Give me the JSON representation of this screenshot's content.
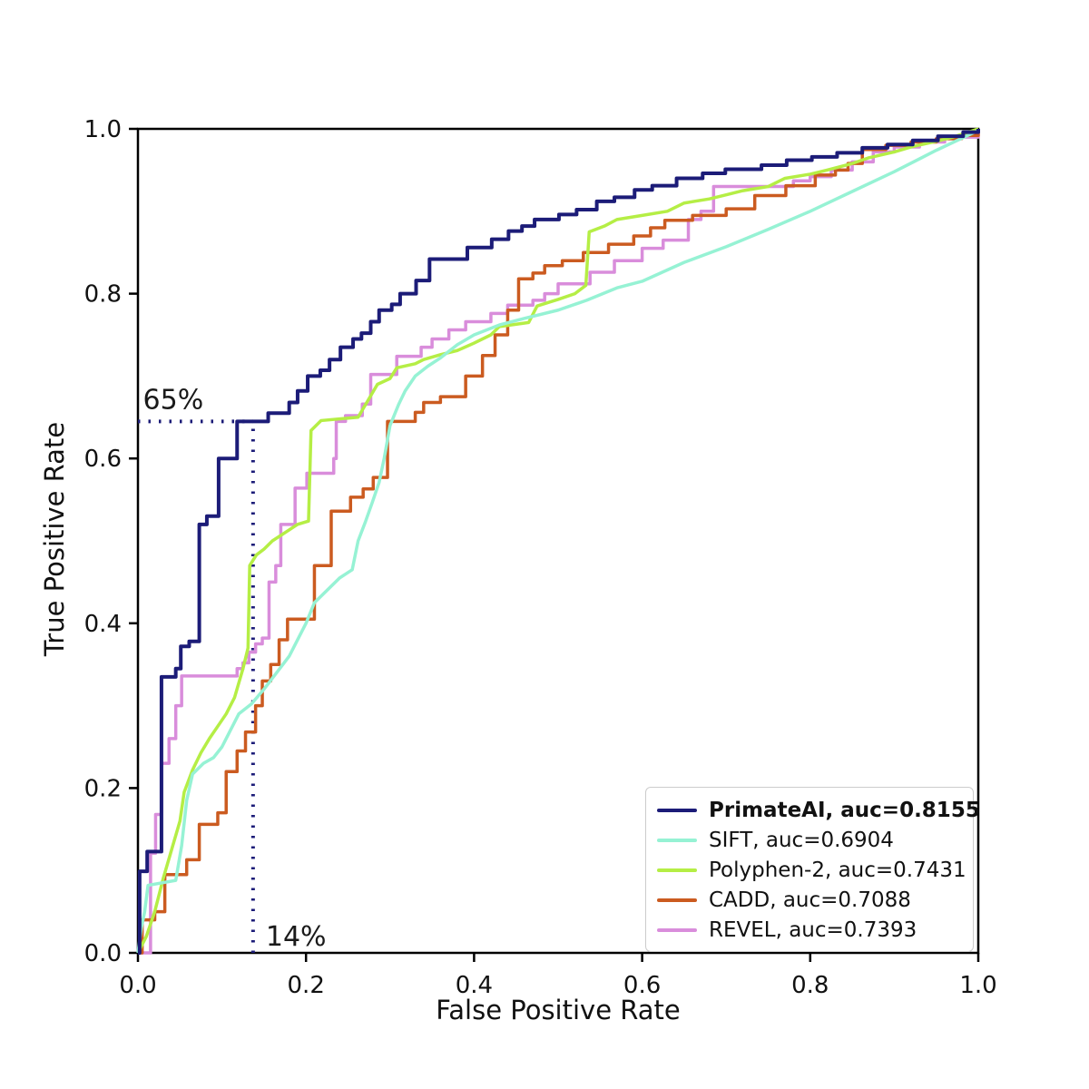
{
  "figure": {
    "background": "#ffffff",
    "axis_color": "#000000",
    "tick_label_color": "#111111"
  },
  "chart_data": {
    "type": "line",
    "subtype": "roc-curves",
    "title": "",
    "xlabel": "False Positive Rate",
    "ylabel": "True Positive Rate",
    "xlim": [
      0,
      1
    ],
    "ylim": [
      0,
      1
    ],
    "xticks": [
      0.0,
      0.2,
      0.4,
      0.6,
      0.8,
      1.0
    ],
    "yticks": [
      0.0,
      0.2,
      0.4,
      0.6,
      0.8,
      1.0
    ],
    "grid": false,
    "legend_position": "lower right",
    "annotations": {
      "tpr_label": "65%",
      "tpr_value": 0.645,
      "fpr_label": "14%",
      "fpr_value": 0.137,
      "line_color": "#1c1c78",
      "line_style": "dotted"
    },
    "series": [
      {
        "name": "PrimateAI",
        "legend_label": "PrimateAI, auc=0.8155",
        "auc": 0.8155,
        "color": "#1c1c78",
        "bold": true,
        "style": "step",
        "width": 4,
        "points": [
          [
            0,
            0
          ],
          [
            0.002,
            0.099
          ],
          [
            0.011,
            0.123
          ],
          [
            0.028,
            0.335
          ],
          [
            0.045,
            0.345
          ],
          [
            0.051,
            0.372
          ],
          [
            0.061,
            0.378
          ],
          [
            0.073,
            0.52
          ],
          [
            0.082,
            0.53
          ],
          [
            0.096,
            0.6
          ],
          [
            0.118,
            0.645
          ],
          [
            0.155,
            0.655
          ],
          [
            0.18,
            0.668
          ],
          [
            0.19,
            0.682
          ],
          [
            0.202,
            0.7
          ],
          [
            0.217,
            0.707
          ],
          [
            0.228,
            0.72
          ],
          [
            0.241,
            0.735
          ],
          [
            0.256,
            0.745
          ],
          [
            0.266,
            0.752
          ],
          [
            0.277,
            0.766
          ],
          [
            0.287,
            0.78
          ],
          [
            0.302,
            0.787
          ],
          [
            0.312,
            0.8
          ],
          [
            0.331,
            0.816
          ],
          [
            0.347,
            0.842
          ],
          [
            0.392,
            0.856
          ],
          [
            0.421,
            0.866
          ],
          [
            0.441,
            0.876
          ],
          [
            0.457,
            0.882
          ],
          [
            0.472,
            0.89
          ],
          [
            0.501,
            0.896
          ],
          [
            0.522,
            0.902
          ],
          [
            0.546,
            0.912
          ],
          [
            0.567,
            0.917
          ],
          [
            0.591,
            0.926
          ],
          [
            0.612,
            0.931
          ],
          [
            0.641,
            0.94
          ],
          [
            0.672,
            0.946
          ],
          [
            0.699,
            0.951
          ],
          [
            0.742,
            0.956
          ],
          [
            0.772,
            0.962
          ],
          [
            0.802,
            0.966
          ],
          [
            0.832,
            0.971
          ],
          [
            0.862,
            0.977
          ],
          [
            0.892,
            0.981
          ],
          [
            0.922,
            0.986
          ],
          [
            0.952,
            0.991
          ],
          [
            0.982,
            0.996
          ],
          [
            1,
            1
          ]
        ]
      },
      {
        "name": "SIFT",
        "legend_label": "SIFT, auc=0.6904",
        "auc": 0.6904,
        "color": "#96f2d4",
        "bold": false,
        "style": "line",
        "width": 3.5,
        "points": [
          [
            0,
            0
          ],
          [
            0.004,
            0.03
          ],
          [
            0.008,
            0.05
          ],
          [
            0.012,
            0.082
          ],
          [
            0.045,
            0.088
          ],
          [
            0.052,
            0.13
          ],
          [
            0.058,
            0.185
          ],
          [
            0.065,
            0.217
          ],
          [
            0.078,
            0.23
          ],
          [
            0.09,
            0.237
          ],
          [
            0.1,
            0.25
          ],
          [
            0.11,
            0.27
          ],
          [
            0.12,
            0.29
          ],
          [
            0.135,
            0.302
          ],
          [
            0.15,
            0.32
          ],
          [
            0.165,
            0.34
          ],
          [
            0.18,
            0.36
          ],
          [
            0.19,
            0.38
          ],
          [
            0.2,
            0.4
          ],
          [
            0.21,
            0.425
          ],
          [
            0.225,
            0.44
          ],
          [
            0.24,
            0.455
          ],
          [
            0.255,
            0.465
          ],
          [
            0.262,
            0.5
          ],
          [
            0.271,
            0.524
          ],
          [
            0.279,
            0.547
          ],
          [
            0.287,
            0.571
          ],
          [
            0.293,
            0.6
          ],
          [
            0.3,
            0.64
          ],
          [
            0.31,
            0.665
          ],
          [
            0.318,
            0.682
          ],
          [
            0.33,
            0.7
          ],
          [
            0.345,
            0.712
          ],
          [
            0.36,
            0.722
          ],
          [
            0.38,
            0.738
          ],
          [
            0.4,
            0.75
          ],
          [
            0.43,
            0.762
          ],
          [
            0.46,
            0.77
          ],
          [
            0.5,
            0.78
          ],
          [
            0.534,
            0.792
          ],
          [
            0.57,
            0.807
          ],
          [
            0.6,
            0.815
          ],
          [
            0.65,
            0.838
          ],
          [
            0.7,
            0.857
          ],
          [
            0.75,
            0.878
          ],
          [
            0.8,
            0.9
          ],
          [
            0.85,
            0.924
          ],
          [
            0.9,
            0.948
          ],
          [
            0.95,
            0.974
          ],
          [
            1,
            0.998
          ]
        ]
      },
      {
        "name": "Polyphen-2",
        "legend_label": "Polyphen-2, auc=0.7431",
        "auc": 0.7431,
        "color": "#b5ee45",
        "bold": false,
        "style": "line",
        "width": 3.5,
        "points": [
          [
            0,
            0
          ],
          [
            0.01,
            0.02
          ],
          [
            0.02,
            0.05
          ],
          [
            0.03,
            0.09
          ],
          [
            0.04,
            0.125
          ],
          [
            0.05,
            0.16
          ],
          [
            0.055,
            0.195
          ],
          [
            0.065,
            0.222
          ],
          [
            0.075,
            0.243
          ],
          [
            0.085,
            0.26
          ],
          [
            0.095,
            0.275
          ],
          [
            0.105,
            0.29
          ],
          [
            0.115,
            0.31
          ],
          [
            0.125,
            0.345
          ],
          [
            0.131,
            0.37
          ],
          [
            0.133,
            0.47
          ],
          [
            0.141,
            0.483
          ],
          [
            0.15,
            0.49
          ],
          [
            0.16,
            0.5
          ],
          [
            0.175,
            0.51
          ],
          [
            0.19,
            0.52
          ],
          [
            0.203,
            0.524
          ],
          [
            0.206,
            0.634
          ],
          [
            0.218,
            0.646
          ],
          [
            0.262,
            0.65
          ],
          [
            0.285,
            0.69
          ],
          [
            0.3,
            0.697
          ],
          [
            0.308,
            0.71
          ],
          [
            0.33,
            0.715
          ],
          [
            0.34,
            0.72
          ],
          [
            0.36,
            0.726
          ],
          [
            0.38,
            0.731
          ],
          [
            0.4,
            0.74
          ],
          [
            0.42,
            0.75
          ],
          [
            0.43,
            0.76
          ],
          [
            0.465,
            0.765
          ],
          [
            0.475,
            0.785
          ],
          [
            0.5,
            0.793
          ],
          [
            0.52,
            0.8
          ],
          [
            0.533,
            0.81
          ],
          [
            0.537,
            0.875
          ],
          [
            0.555,
            0.882
          ],
          [
            0.57,
            0.89
          ],
          [
            0.6,
            0.895
          ],
          [
            0.63,
            0.9
          ],
          [
            0.65,
            0.91
          ],
          [
            0.68,
            0.915
          ],
          [
            0.7,
            0.92
          ],
          [
            0.72,
            0.925
          ],
          [
            0.75,
            0.93
          ],
          [
            0.77,
            0.94
          ],
          [
            0.8,
            0.945
          ],
          [
            0.82,
            0.95
          ],
          [
            0.85,
            0.958
          ],
          [
            0.87,
            0.965
          ],
          [
            0.9,
            0.972
          ],
          [
            0.92,
            0.978
          ],
          [
            0.95,
            0.985
          ],
          [
            0.97,
            0.99
          ],
          [
            1,
            1
          ]
        ]
      },
      {
        "name": "CADD",
        "legend_label": "CADD, auc=0.7088",
        "auc": 0.7088,
        "color": "#cb5b20",
        "bold": false,
        "style": "step",
        "width": 3.5,
        "points": [
          [
            0,
            0
          ],
          [
            0.005,
            0.04
          ],
          [
            0.02,
            0.05
          ],
          [
            0.032,
            0.095
          ],
          [
            0.058,
            0.113
          ],
          [
            0.073,
            0.156
          ],
          [
            0.095,
            0.17
          ],
          [
            0.105,
            0.22
          ],
          [
            0.118,
            0.245
          ],
          [
            0.128,
            0.268
          ],
          [
            0.14,
            0.3
          ],
          [
            0.148,
            0.33
          ],
          [
            0.158,
            0.35
          ],
          [
            0.168,
            0.38
          ],
          [
            0.178,
            0.405
          ],
          [
            0.21,
            0.47
          ],
          [
            0.23,
            0.536
          ],
          [
            0.253,
            0.553
          ],
          [
            0.268,
            0.563
          ],
          [
            0.28,
            0.577
          ],
          [
            0.297,
            0.645
          ],
          [
            0.33,
            0.656
          ],
          [
            0.34,
            0.668
          ],
          [
            0.36,
            0.675
          ],
          [
            0.39,
            0.7
          ],
          [
            0.41,
            0.725
          ],
          [
            0.425,
            0.75
          ],
          [
            0.44,
            0.78
          ],
          [
            0.453,
            0.818
          ],
          [
            0.47,
            0.825
          ],
          [
            0.484,
            0.834
          ],
          [
            0.505,
            0.84
          ],
          [
            0.53,
            0.85
          ],
          [
            0.56,
            0.86
          ],
          [
            0.59,
            0.87
          ],
          [
            0.61,
            0.88
          ],
          [
            0.627,
            0.889
          ],
          [
            0.66,
            0.895
          ],
          [
            0.7,
            0.903
          ],
          [
            0.734,
            0.919
          ],
          [
            0.771,
            0.931
          ],
          [
            0.806,
            0.944
          ],
          [
            0.83,
            0.95
          ],
          [
            0.845,
            0.958
          ],
          [
            0.862,
            0.975
          ],
          [
            0.89,
            0.98
          ],
          [
            0.92,
            0.984
          ],
          [
            0.95,
            0.988
          ],
          [
            0.98,
            0.992
          ],
          [
            1,
            1
          ]
        ]
      },
      {
        "name": "REVEL",
        "legend_label": "REVEL, auc=0.7393",
        "auc": 0.7393,
        "color": "#d98ddb",
        "bold": false,
        "style": "step",
        "width": 3.5,
        "points": [
          [
            0,
            0
          ],
          [
            0.015,
            0.121
          ],
          [
            0.021,
            0.168
          ],
          [
            0.028,
            0.23
          ],
          [
            0.037,
            0.26
          ],
          [
            0.045,
            0.3
          ],
          [
            0.052,
            0.336
          ],
          [
            0.113,
            0.336
          ],
          [
            0.118,
            0.345
          ],
          [
            0.125,
            0.352
          ],
          [
            0.132,
            0.365
          ],
          [
            0.14,
            0.375
          ],
          [
            0.148,
            0.382
          ],
          [
            0.156,
            0.45
          ],
          [
            0.164,
            0.47
          ],
          [
            0.17,
            0.52
          ],
          [
            0.187,
            0.564
          ],
          [
            0.201,
            0.582
          ],
          [
            0.233,
            0.6
          ],
          [
            0.236,
            0.645
          ],
          [
            0.247,
            0.652
          ],
          [
            0.267,
            0.666
          ],
          [
            0.277,
            0.702
          ],
          [
            0.308,
            0.724
          ],
          [
            0.337,
            0.735
          ],
          [
            0.35,
            0.745
          ],
          [
            0.37,
            0.756
          ],
          [
            0.39,
            0.766
          ],
          [
            0.42,
            0.776
          ],
          [
            0.44,
            0.786
          ],
          [
            0.47,
            0.792
          ],
          [
            0.484,
            0.8
          ],
          [
            0.5,
            0.812
          ],
          [
            0.538,
            0.826
          ],
          [
            0.567,
            0.84
          ],
          [
            0.6,
            0.855
          ],
          [
            0.625,
            0.865
          ],
          [
            0.655,
            0.89
          ],
          [
            0.67,
            0.9
          ],
          [
            0.685,
            0.93
          ],
          [
            0.78,
            0.937
          ],
          [
            0.8,
            0.942
          ],
          [
            0.825,
            0.95
          ],
          [
            0.85,
            0.96
          ],
          [
            0.875,
            0.972
          ],
          [
            0.9,
            0.978
          ],
          [
            0.93,
            0.984
          ],
          [
            0.96,
            0.99
          ],
          [
            1,
            1
          ]
        ]
      }
    ]
  }
}
